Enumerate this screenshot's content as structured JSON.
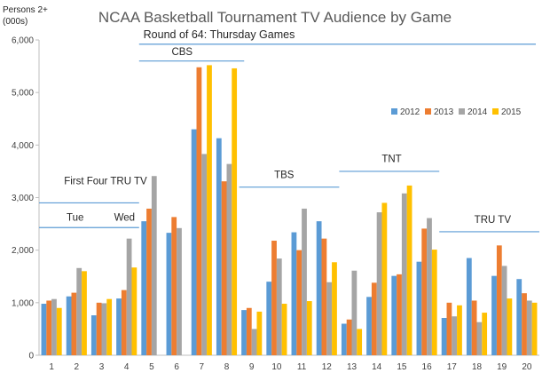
{
  "chart_data": {
    "type": "bar",
    "title": "NCAA Basketball Tournament TV Audience by Game",
    "subtitle": "Round of 64: Thursday Games",
    "ylabel": "Persons 2+ (000s)",
    "ylabel_lines": [
      "Persons 2+",
      "(000s)"
    ],
    "xlabel": "",
    "ylim": [
      0,
      6000
    ],
    "yticks": [
      "0",
      "1,000",
      "2,000",
      "3,000",
      "4,000",
      "5,000",
      "6,000"
    ],
    "grid": false,
    "legend_position": "right",
    "categories": [
      "1",
      "2",
      "3",
      "4",
      "5",
      "6",
      "7",
      "8",
      "9",
      "10",
      "11",
      "12",
      "13",
      "14",
      "15",
      "16",
      "17",
      "18",
      "19",
      "20"
    ],
    "series": [
      {
        "name": "2012",
        "color": "#5B9BD5",
        "values": [
          980,
          1120,
          760,
          1080,
          2550,
          2330,
          4300,
          4130,
          860,
          1400,
          2340,
          2550,
          600,
          1110,
          1510,
          1780,
          710,
          1850,
          1510,
          1450
        ]
      },
      {
        "name": "2013",
        "color": "#ED7D31",
        "values": [
          1040,
          1190,
          1000,
          1240,
          2790,
          2630,
          5480,
          3310,
          900,
          2180,
          2000,
          2220,
          680,
          1380,
          1540,
          2410,
          1000,
          1040,
          2090,
          1180
        ]
      },
      {
        "name": "2014",
        "color": "#A5A5A5",
        "values": [
          1070,
          1660,
          990,
          2220,
          3410,
          2420,
          3830,
          3640,
          500,
          1840,
          2790,
          1390,
          1610,
          2720,
          3080,
          2610,
          740,
          630,
          1700,
          1040
        ]
      },
      {
        "name": "2015",
        "color": "#FFC000",
        "values": [
          900,
          1600,
          1070,
          1670,
          0,
          0,
          5520,
          5460,
          830,
          980,
          1030,
          1770,
          500,
          2900,
          3230,
          2010,
          950,
          810,
          1080,
          1000
        ]
      }
    ],
    "annotations": [
      {
        "text": "First Four TRU TV",
        "label_x": 1.5,
        "label_y": 3250,
        "line_x": [
          0.5,
          4.5
        ],
        "line_y": 2900
      },
      {
        "text": "Tue",
        "label_x": 1.6,
        "label_y": 2560,
        "line_x": [
          0.5,
          2.5
        ],
        "line_y": 2430
      },
      {
        "text": "Wed",
        "label_x": 3.5,
        "label_y": 2560,
        "line_x": [
          2.5,
          4.5
        ],
        "line_y": 2430
      },
      {
        "text": "CBS",
        "label_x": 5.8,
        "label_y": 5710,
        "line_x": [
          4.5,
          8.7
        ],
        "line_y": 5600
      },
      {
        "text": "TBS",
        "label_x": 9.9,
        "label_y": 3370,
        "line_x": [
          8.5,
          12.5
        ],
        "line_y": 3200
      },
      {
        "text": "TNT",
        "label_x": 14.2,
        "label_y": 3680,
        "line_x": [
          12.5,
          16.5
        ],
        "line_y": 3500
      },
      {
        "text": "TRU TV",
        "label_x": 17.9,
        "label_y": 2520,
        "line_x": [
          16.5,
          20.5
        ],
        "line_y": 2350
      }
    ],
    "round_line_y": 5920
  }
}
